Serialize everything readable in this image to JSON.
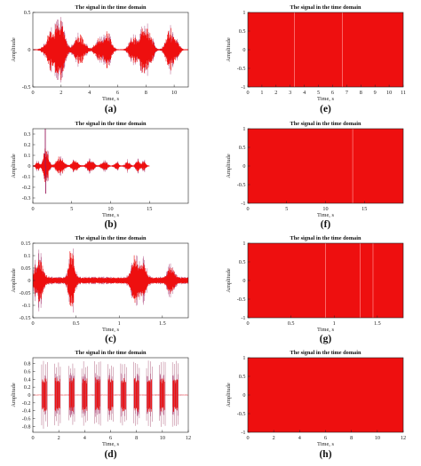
{
  "colors": {
    "signal_fill": "#ee0f0f",
    "signal_edge": "#9a1a5c",
    "axis": "#222222"
  },
  "chart_data": [
    {
      "id": "a",
      "type": "line",
      "panel_label": "(a)",
      "title": "The signal in the time domain",
      "xlabel": "Time, s",
      "ylabel": "Amplitude",
      "xlim": [
        0,
        11
      ],
      "ylim": [
        -0.5,
        0.5
      ],
      "xticks": [
        0,
        2,
        4,
        6,
        8,
        10
      ],
      "xtick_labels": [
        "0",
        "2",
        "4",
        "6",
        "8",
        "10"
      ],
      "yticks": [
        -0.5,
        0,
        0.5
      ],
      "ytick_labels": [
        "-0.5",
        "0",
        "0.5"
      ],
      "bursts": [
        {
          "t": 1.5,
          "w": 0.55,
          "a": 0.4
        },
        {
          "t": 2.1,
          "w": 0.3,
          "a": 0.3
        },
        {
          "t": 3.3,
          "w": 0.45,
          "a": 0.23
        },
        {
          "t": 4.6,
          "w": 0.3,
          "a": 0.16
        },
        {
          "t": 5.25,
          "w": 0.35,
          "a": 0.3
        },
        {
          "t": 7.1,
          "w": 0.35,
          "a": 0.2
        },
        {
          "t": 7.8,
          "w": 0.35,
          "a": 0.35
        },
        {
          "t": 8.3,
          "w": 0.3,
          "a": 0.22
        },
        {
          "t": 9.7,
          "w": 0.35,
          "a": 0.3
        },
        {
          "t": 10.2,
          "w": 0.25,
          "a": 0.12
        }
      ],
      "noise": 0.006
    },
    {
      "id": "b",
      "type": "line",
      "panel_label": "(b)",
      "title": "The signal in the time domain",
      "xlabel": "Time, s",
      "ylabel": "Amplitude",
      "xlim": [
        0,
        20
      ],
      "ylim": [
        -0.35,
        0.35
      ],
      "xticks": [
        0,
        5,
        10,
        15
      ],
      "xtick_labels": [
        "0",
        "5",
        "10",
        "15"
      ],
      "yticks": [
        -0.3,
        -0.2,
        -0.1,
        0,
        0.1,
        0.2,
        0.3
      ],
      "ytick_labels": [
        "-0.3",
        "-0.2",
        "-0.1",
        "0",
        "0.1",
        "0.2",
        "0.3"
      ],
      "bursts": [
        {
          "t": 0.6,
          "w": 0.3,
          "a": 0.05
        },
        {
          "t": 1.7,
          "w": 0.4,
          "a": 0.2
        },
        {
          "t": 3.5,
          "w": 0.6,
          "a": 0.1
        },
        {
          "t": 5.4,
          "w": 0.5,
          "a": 0.06
        },
        {
          "t": 7.4,
          "w": 0.55,
          "a": 0.06
        },
        {
          "t": 9.2,
          "w": 0.45,
          "a": 0.05
        },
        {
          "t": 10.8,
          "w": 0.35,
          "a": 0.04
        },
        {
          "t": 12.2,
          "w": 0.35,
          "a": 0.05
        },
        {
          "t": 13.5,
          "w": 0.35,
          "a": 0.06
        },
        {
          "t": 14.3,
          "w": 0.3,
          "a": 0.05
        }
      ],
      "spikes": [
        {
          "t": 1.6,
          "a": 0.35,
          "s": 1
        },
        {
          "t": 1.65,
          "a": -0.26,
          "s": 1
        }
      ],
      "signal_end": 15,
      "noise": 0.004
    },
    {
      "id": "c",
      "type": "line",
      "panel_label": "(c)",
      "title": "The signal in the time domain",
      "xlabel": "Time, s",
      "ylabel": "Amplitude",
      "xlim": [
        0,
        1.8
      ],
      "ylim": [
        -0.15,
        0.15
      ],
      "xticks": [
        0,
        0.5,
        1,
        1.5
      ],
      "xtick_labels": [
        "0",
        "0.5",
        "1",
        "1.5"
      ],
      "yticks": [
        -0.15,
        -0.1,
        -0.05,
        0,
        0.05,
        0.1,
        0.15
      ],
      "ytick_labels": [
        "-0.15",
        "-0.1",
        "-0.05",
        "0",
        "0.05",
        "0.1",
        "0.15"
      ],
      "bursts": [
        {
          "t": 0.07,
          "w": 0.06,
          "a": 0.09
        },
        {
          "t": 0.45,
          "w": 0.04,
          "a": 0.14
        },
        {
          "t": 1.18,
          "w": 0.05,
          "a": 0.1
        },
        {
          "t": 1.27,
          "w": 0.05,
          "a": 0.07
        },
        {
          "t": 1.6,
          "w": 0.05,
          "a": 0.05
        }
      ],
      "noise": 0.012
    },
    {
      "id": "d",
      "type": "line",
      "panel_label": "(d)",
      "title": "The signal in the time domain",
      "xlabel": "Time, s",
      "ylabel": "Amplitude",
      "xlim": [
        0,
        12
      ],
      "ylim": [
        -0.95,
        0.95
      ],
      "xticks": [
        0,
        2,
        4,
        6,
        8,
        10,
        12
      ],
      "xtick_labels": [
        "0",
        "2",
        "4",
        "6",
        "8",
        "10",
        "12"
      ],
      "yticks": [
        -0.8,
        -0.6,
        -0.4,
        -0.2,
        0,
        0.2,
        0.4,
        0.6,
        0.8
      ],
      "ytick_labels": [
        "-0.8",
        "-0.6",
        "-0.4",
        "-0.2",
        "0",
        "0.2",
        "0.4",
        "0.6",
        "0.8"
      ],
      "blocks": [
        0.9,
        1.9,
        3.0,
        4.0,
        5.0,
        6.0,
        7.0,
        8.0,
        9.0,
        10.0,
        11.0
      ],
      "block_width": 0.38,
      "block_amp": 0.45,
      "spike_amp": 0.88,
      "noise": 0.005
    },
    {
      "id": "e",
      "type": "area",
      "panel_label": "(e)",
      "title": "The signal in the time domain",
      "xlabel": "Time, s",
      "ylabel": "Amplitude",
      "xlim": [
        0,
        11
      ],
      "ylim": [
        -1,
        1
      ],
      "xticks": [
        0,
        1,
        2,
        3,
        4,
        5,
        6,
        7,
        8,
        9,
        10,
        11
      ],
      "xtick_labels": [
        "0",
        "1",
        "2",
        "3",
        "4",
        "5",
        "6",
        "7",
        "8",
        "9",
        "10",
        "11"
      ],
      "yticks": [
        -1,
        -0.5,
        0,
        0.5,
        1
      ],
      "ytick_labels": [
        "-1",
        "-0.5",
        "0",
        "0.5",
        "1"
      ],
      "spikes": [
        3.3,
        6.7
      ]
    },
    {
      "id": "f",
      "type": "area",
      "panel_label": "(f)",
      "title": "The signal in the time domain",
      "xlabel": "Time, s",
      "ylabel": "Amplitude",
      "xlim": [
        0,
        20
      ],
      "ylim": [
        -1,
        1
      ],
      "xticks": [
        0,
        5,
        10,
        15
      ],
      "xtick_labels": [
        "0",
        "5",
        "10",
        "15"
      ],
      "yticks": [
        -1,
        -0.5,
        0,
        0.5,
        1
      ],
      "ytick_labels": [
        "-1",
        "-0.5",
        "0",
        "0.5",
        "1"
      ],
      "spikes": [
        13.5
      ]
    },
    {
      "id": "g",
      "type": "area",
      "panel_label": "(g)",
      "title": "The signal in the time domain",
      "xlabel": "Time, s",
      "ylabel": "Amplitude",
      "xlim": [
        0,
        1.8
      ],
      "ylim": [
        -1,
        1
      ],
      "xticks": [
        0,
        0.5,
        1,
        1.5
      ],
      "xtick_labels": [
        "0",
        "0.5",
        "1",
        "1.5"
      ],
      "yticks": [
        -1,
        -0.5,
        0,
        0.5,
        1
      ],
      "ytick_labels": [
        "-1",
        "-0.5",
        "0",
        "0.5",
        "1"
      ],
      "spikes": [
        0.9,
        1.3,
        1.45
      ]
    },
    {
      "id": "h",
      "type": "area",
      "panel_label": "(h)",
      "title": "The signal in the time domain",
      "xlabel": "Time, s",
      "ylabel": "Amplitude",
      "xlim": [
        0,
        12
      ],
      "ylim": [
        -1,
        1
      ],
      "xticks": [
        0,
        2,
        4,
        6,
        8,
        10,
        12
      ],
      "xtick_labels": [
        "0",
        "2",
        "4",
        "6",
        "8",
        "10",
        "12"
      ],
      "yticks": [
        -1,
        -0.5,
        0,
        0.5,
        1
      ],
      "ytick_labels": [
        "-1",
        "-0.5",
        "0",
        "0.5",
        "1"
      ],
      "spikes": []
    }
  ]
}
